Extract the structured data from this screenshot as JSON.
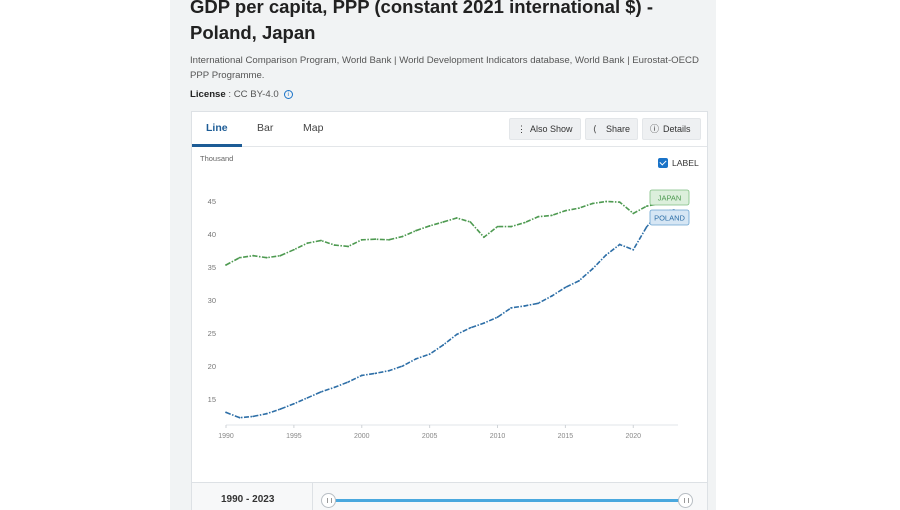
{
  "header": {
    "title": "GDP per capita, PPP (constant 2021 international $) - Poland, Japan",
    "source": "International Comparison Program, World Bank | World Development Indicators database, World Bank | Eurostat-OECD PPP Programme.",
    "license_label": "License",
    "license_value": ": CC BY-4.0",
    "info_icon": "info-icon"
  },
  "tabs": [
    {
      "label": "Line",
      "active": true
    },
    {
      "label": "Bar",
      "active": false
    },
    {
      "label": "Map",
      "active": false
    }
  ],
  "toolbar": {
    "also_show": "Also Show",
    "share": "Share",
    "details": "Details"
  },
  "label_toggle": {
    "label": "LABEL",
    "checked": true
  },
  "range": {
    "label": "1990 - 2023",
    "start": 1990,
    "end": 2023
  },
  "colors": {
    "japan": "#4e9a51",
    "poland": "#2e6fa7",
    "accent": "#1d5c96"
  },
  "chart_data": {
    "type": "line",
    "ylabel": "Thousand",
    "ylim": [
      12,
      47
    ],
    "xlim": [
      1990,
      2023
    ],
    "yticks": [
      15,
      20,
      25,
      30,
      35,
      40,
      45
    ],
    "xticks": [
      1990,
      1995,
      2000,
      2005,
      2010,
      2015,
      2020
    ],
    "grid": false,
    "legend": "end-of-line labels",
    "x": [
      1990,
      1991,
      1992,
      1993,
      1994,
      1995,
      1996,
      1997,
      1998,
      1999,
      2000,
      2001,
      2002,
      2003,
      2004,
      2005,
      2006,
      2007,
      2008,
      2009,
      2010,
      2011,
      2012,
      2013,
      2014,
      2015,
      2016,
      2017,
      2018,
      2019,
      2020,
      2021,
      2022,
      2023
    ],
    "series": [
      {
        "name": "JAPAN",
        "color": "#4e9a51",
        "values": [
          35.3,
          36.4,
          36.7,
          36.4,
          36.7,
          37.6,
          38.6,
          39.0,
          38.3,
          38.1,
          39.1,
          39.2,
          39.1,
          39.6,
          40.5,
          41.2,
          41.8,
          42.4,
          41.8,
          39.5,
          41.1,
          41.1,
          41.7,
          42.6,
          42.8,
          43.5,
          43.9,
          44.6,
          44.9,
          44.8,
          43.1,
          44.2,
          44.6,
          45.0
        ]
      },
      {
        "name": "POLAND",
        "color": "#2e6fa7",
        "values": [
          13.0,
          12.2,
          12.4,
          12.8,
          13.5,
          14.3,
          15.2,
          16.1,
          16.8,
          17.6,
          18.6,
          18.9,
          19.3,
          20.0,
          21.1,
          21.8,
          23.2,
          24.8,
          25.8,
          26.5,
          27.4,
          28.8,
          29.1,
          29.5,
          30.6,
          31.9,
          32.9,
          34.7,
          36.8,
          38.4,
          37.6,
          41.1,
          43.4,
          43.6
        ]
      }
    ]
  }
}
